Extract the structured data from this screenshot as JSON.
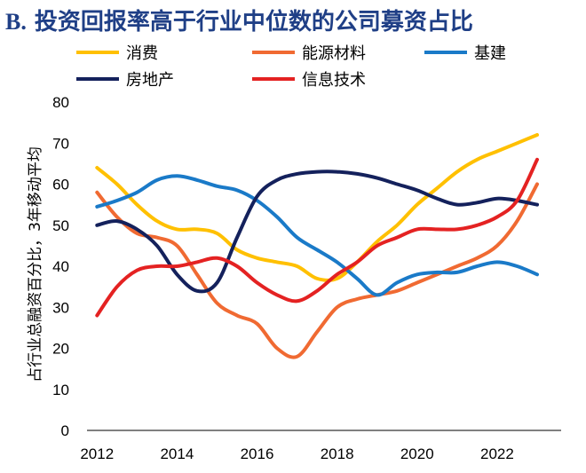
{
  "chart_data": {
    "type": "line",
    "title_prefix": "B.",
    "title": "投资回报率高于行业中位数的公司募资占比",
    "ylabel": "占行业总融资百分比，3年移动平均",
    "xlabel": "",
    "ylim": [
      0,
      80
    ],
    "yticks": [
      0,
      10,
      20,
      30,
      40,
      50,
      60,
      70,
      80
    ],
    "xticks": [
      2012,
      2014,
      2016,
      2018,
      2020,
      2022
    ],
    "xlim": [
      2011.75,
      2023.6
    ],
    "x": [
      2012,
      2012.5,
      2013,
      2013.5,
      2014,
      2014.5,
      2015,
      2015.5,
      2016,
      2016.5,
      2017,
      2017.5,
      2018,
      2018.5,
      2019,
      2019.5,
      2020,
      2020.5,
      2021,
      2021.5,
      2022,
      2022.5,
      2023
    ],
    "grid": false,
    "legend_position": "top",
    "series": [
      {
        "name": "消费",
        "color": "#ffc000",
        "values": [
          64,
          60,
          55,
          51,
          49,
          49,
          48,
          44,
          42,
          41,
          40,
          37,
          37,
          41,
          46,
          50,
          55,
          59,
          63,
          66,
          68,
          70,
          72
        ]
      },
      {
        "name": "能源材料",
        "color": "#f06a32",
        "values": [
          58,
          52,
          48,
          47,
          45,
          38,
          31,
          28,
          26,
          20,
          18,
          24,
          30,
          32,
          33,
          34,
          36,
          38,
          40,
          42,
          45,
          51,
          60
        ]
      },
      {
        "name": "基建",
        "color": "#1a7ac8",
        "values": [
          54.5,
          56,
          58,
          61,
          62,
          61,
          59.5,
          58.5,
          56,
          52,
          47,
          44,
          41,
          37,
          33,
          36,
          38,
          38.5,
          38.5,
          40,
          41,
          40,
          38
        ]
      },
      {
        "name": "房地产",
        "color": "#14215c",
        "values": [
          50,
          51,
          49,
          45,
          38,
          34,
          36,
          47,
          57,
          61,
          62.5,
          63,
          63,
          62.5,
          61.5,
          60,
          58.5,
          56.5,
          55,
          55.5,
          56.5,
          56,
          55
        ]
      },
      {
        "name": "信息技术",
        "color": "#e42222",
        "values": [
          28,
          35,
          39,
          40,
          40,
          41,
          42,
          40,
          36,
          33,
          31.5,
          34,
          38,
          41,
          45,
          47,
          49,
          49,
          49,
          50,
          52,
          56,
          66
        ]
      }
    ]
  }
}
